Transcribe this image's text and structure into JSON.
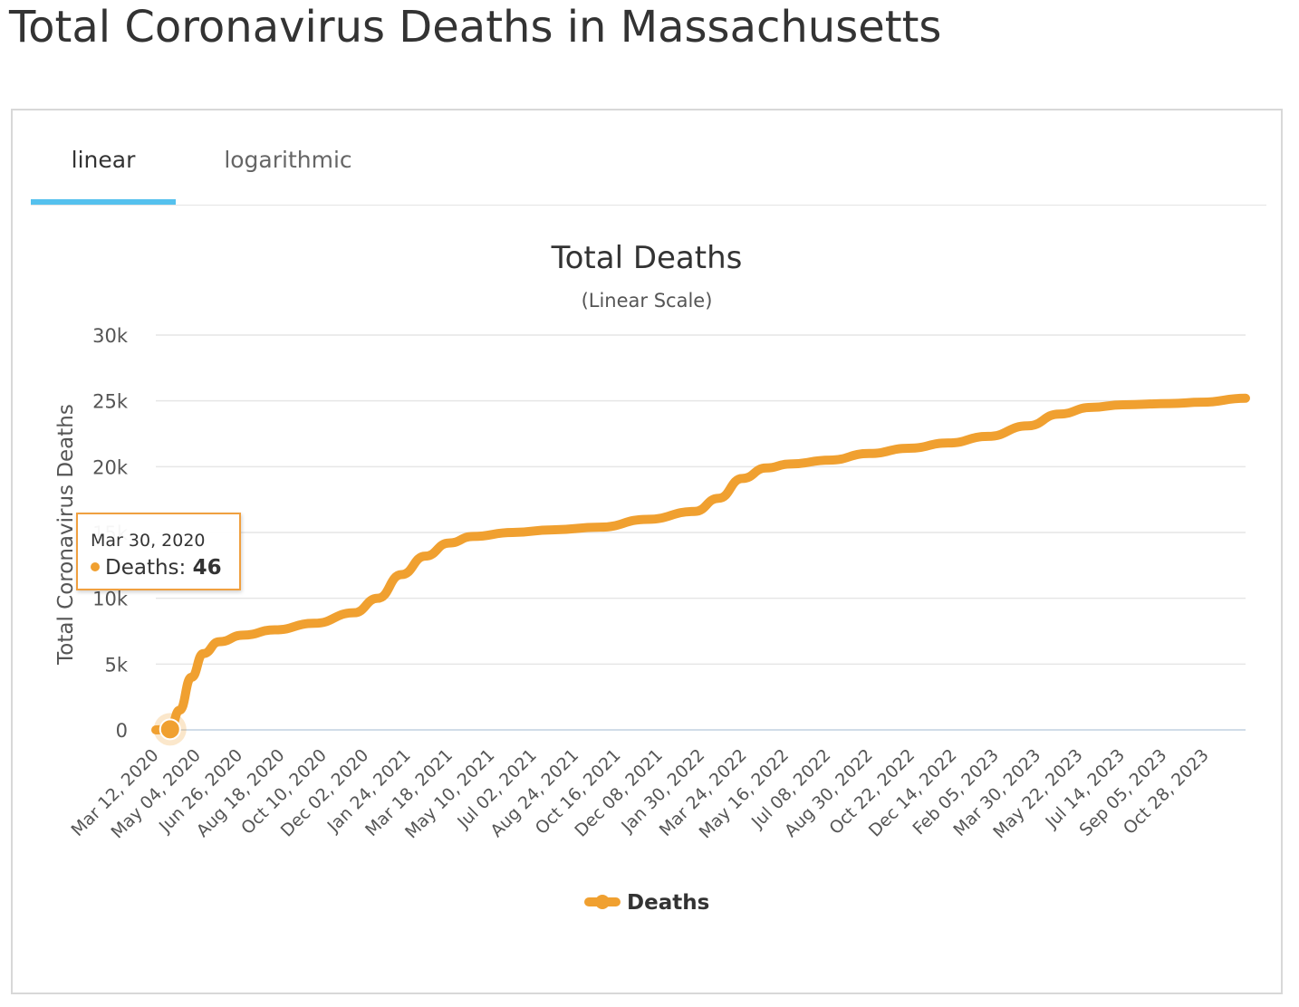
{
  "page": {
    "title": "Total Coronavirus Deaths in Massachusetts"
  },
  "tabs": [
    {
      "label": "linear",
      "active": true
    },
    {
      "label": "logarithmic",
      "active": false
    }
  ],
  "tooltip": {
    "date": "Mar 30, 2020",
    "series": "Deaths",
    "separator": ":",
    "value": "46"
  },
  "colors": {
    "series": "#f0a030",
    "tab_accent": "#55c1ee",
    "grid": "#e6e6e6"
  },
  "chart_data": {
    "type": "line",
    "title": "Total Deaths",
    "subtitle": "(Linear Scale)",
    "ylabel": "Total Coronavirus Deaths",
    "xlabel": "",
    "ylim": [
      0,
      30000
    ],
    "y_ticks": [
      0,
      5000,
      10000,
      15000,
      20000,
      25000,
      30000
    ],
    "y_tick_labels": [
      "0",
      "5k",
      "10k",
      "15k",
      "20k",
      "25k",
      "30k"
    ],
    "x_tick_labels": [
      "Mar 12, 2020",
      "May 04, 2020",
      "Jun 26, 2020",
      "Aug 18, 2020",
      "Oct 10, 2020",
      "Dec 02, 2020",
      "Jan 24, 2021",
      "Mar 18, 2021",
      "May 10, 2021",
      "Jul 02, 2021",
      "Aug 24, 2021",
      "Oct 16, 2021",
      "Dec 08, 2021",
      "Jan 30, 2022",
      "Mar 24, 2022",
      "May 16, 2022",
      "Jul 08, 2022",
      "Aug 30, 2022",
      "Oct 22, 2022",
      "Dec 14, 2022",
      "Feb 05, 2023",
      "Mar 30, 2023",
      "May 22, 2023",
      "Jul 14, 2023",
      "Sep 05, 2023",
      "Oct 28, 2023"
    ],
    "x_range_days": [
      0,
      1375
    ],
    "legend": {
      "label": "Deaths",
      "position": "bottom-center"
    },
    "series": [
      {
        "name": "Deaths",
        "points": [
          [
            0,
            0
          ],
          [
            18,
            46
          ],
          [
            30,
            1500
          ],
          [
            45,
            4000
          ],
          [
            60,
            5800
          ],
          [
            80,
            6700
          ],
          [
            110,
            7200
          ],
          [
            150,
            7600
          ],
          [
            200,
            8100
          ],
          [
            250,
            8900
          ],
          [
            280,
            10000
          ],
          [
            310,
            11800
          ],
          [
            340,
            13200
          ],
          [
            370,
            14200
          ],
          [
            400,
            14700
          ],
          [
            450,
            15000
          ],
          [
            500,
            15200
          ],
          [
            560,
            15400
          ],
          [
            620,
            16000
          ],
          [
            680,
            16600
          ],
          [
            710,
            17600
          ],
          [
            740,
            19100
          ],
          [
            770,
            19900
          ],
          [
            800,
            20200
          ],
          [
            850,
            20500
          ],
          [
            900,
            21000
          ],
          [
            950,
            21400
          ],
          [
            1000,
            21800
          ],
          [
            1050,
            22300
          ],
          [
            1100,
            23100
          ],
          [
            1140,
            24000
          ],
          [
            1180,
            24500
          ],
          [
            1220,
            24700
          ],
          [
            1280,
            24800
          ],
          [
            1320,
            24900
          ],
          [
            1375,
            25200
          ]
        ],
        "highlight": {
          "x": 18,
          "y": 46
        }
      }
    ]
  }
}
